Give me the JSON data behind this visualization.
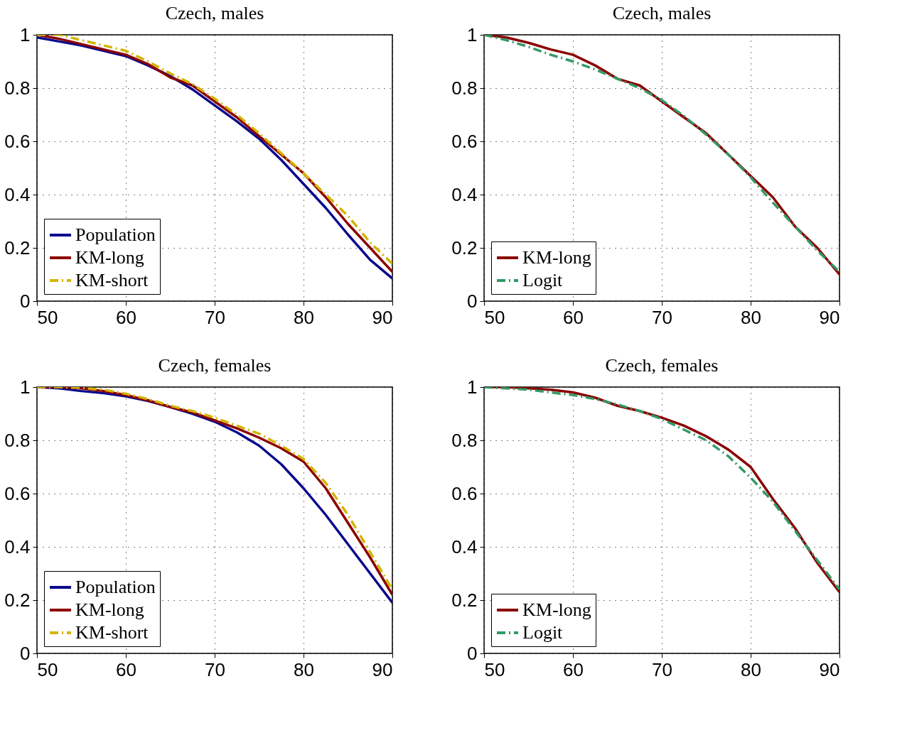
{
  "chart_data": [
    {
      "type": "line",
      "title": "Czech, males",
      "x": [
        50,
        52.5,
        55,
        57.5,
        60,
        62.5,
        65,
        67.5,
        70,
        72.5,
        75,
        77.5,
        80,
        82.5,
        85,
        87.5,
        90
      ],
      "xlim": [
        50,
        90
      ],
      "xticks": [
        50,
        60,
        70,
        80,
        90
      ],
      "ylim": [
        0,
        1
      ],
      "yticks": [
        0,
        0.2,
        0.4,
        0.6,
        0.8,
        1
      ],
      "grid": true,
      "legend": "bottom left",
      "series": [
        {
          "name": "Population",
          "color": "#0a0a8c",
          "line_style": "solid",
          "values": [
            0.99,
            0.975,
            0.96,
            0.94,
            0.92,
            0.885,
            0.845,
            0.795,
            0.735,
            0.675,
            0.61,
            0.53,
            0.44,
            0.35,
            0.25,
            0.155,
            0.085
          ]
        },
        {
          "name": "KM-long",
          "color": "#8b0000",
          "line_style": "solid",
          "values": [
            1.0,
            0.985,
            0.965,
            0.945,
            0.925,
            0.89,
            0.84,
            0.81,
            0.75,
            0.69,
            0.62,
            0.55,
            0.48,
            0.39,
            0.29,
            0.2,
            0.11
          ]
        },
        {
          "name": "KM-short",
          "color": "#d4b400",
          "line_style": "dashed",
          "values": [
            1.0,
            1.0,
            0.98,
            0.96,
            0.94,
            0.9,
            0.855,
            0.815,
            0.76,
            0.7,
            0.63,
            0.555,
            0.48,
            0.4,
            0.32,
            0.22,
            0.14
          ]
        }
      ]
    },
    {
      "type": "line",
      "title": "Czech, males",
      "x": [
        50,
        52.5,
        55,
        57.5,
        60,
        62.5,
        65,
        67.5,
        70,
        72.5,
        75,
        77.5,
        80,
        82.5,
        85,
        87.5,
        90
      ],
      "xlim": [
        50,
        90
      ],
      "xticks": [
        50,
        60,
        70,
        80,
        90
      ],
      "ylim": [
        0,
        1
      ],
      "yticks": [
        0,
        0.2,
        0.4,
        0.6,
        0.8,
        1
      ],
      "grid": true,
      "legend": "bottom left",
      "series": [
        {
          "name": "KM-long",
          "color": "#8b0000",
          "line_style": "solid",
          "values": [
            1.0,
            0.99,
            0.97,
            0.945,
            0.925,
            0.885,
            0.835,
            0.81,
            0.75,
            0.69,
            0.63,
            0.55,
            0.47,
            0.39,
            0.28,
            0.2,
            0.1
          ]
        },
        {
          "name": "Logit",
          "color": "#339966",
          "line_style": "dashed",
          "values": [
            1.0,
            0.98,
            0.955,
            0.925,
            0.9,
            0.87,
            0.835,
            0.8,
            0.755,
            0.695,
            0.625,
            0.55,
            0.465,
            0.37,
            0.28,
            0.19,
            0.11
          ]
        }
      ]
    },
    {
      "type": "line",
      "title": "Czech, females",
      "x": [
        50,
        52.5,
        55,
        57.5,
        60,
        62.5,
        65,
        67.5,
        70,
        72.5,
        75,
        77.5,
        80,
        82.5,
        85,
        87.5,
        90
      ],
      "xlim": [
        50,
        90
      ],
      "xticks": [
        50,
        60,
        70,
        80,
        90
      ],
      "ylim": [
        0,
        1
      ],
      "yticks": [
        0,
        0.2,
        0.4,
        0.6,
        0.8,
        1
      ],
      "grid": true,
      "legend": "bottom left",
      "series": [
        {
          "name": "Population",
          "color": "#0a0a8c",
          "line_style": "solid",
          "values": [
            1.0,
            0.995,
            0.985,
            0.977,
            0.965,
            0.948,
            0.925,
            0.9,
            0.87,
            0.83,
            0.78,
            0.71,
            0.62,
            0.52,
            0.41,
            0.3,
            0.19
          ]
        },
        {
          "name": "KM-long",
          "color": "#8b0000",
          "line_style": "solid",
          "values": [
            1.0,
            1.0,
            0.995,
            0.985,
            0.97,
            0.95,
            0.925,
            0.905,
            0.875,
            0.845,
            0.81,
            0.77,
            0.72,
            0.62,
            0.49,
            0.36,
            0.22
          ]
        },
        {
          "name": "KM-short",
          "color": "#d4b400",
          "line_style": "dashed",
          "values": [
            1.0,
            1.0,
            0.997,
            0.99,
            0.975,
            0.955,
            0.93,
            0.91,
            0.885,
            0.855,
            0.825,
            0.78,
            0.73,
            0.64,
            0.52,
            0.38,
            0.24
          ]
        }
      ]
    },
    {
      "type": "line",
      "title": "Czech, females",
      "x": [
        50,
        52.5,
        55,
        57.5,
        60,
        62.5,
        65,
        67.5,
        70,
        72.5,
        75,
        77.5,
        80,
        82.5,
        85,
        87.5,
        90
      ],
      "xlim": [
        50,
        90
      ],
      "xticks": [
        50,
        60,
        70,
        80,
        90
      ],
      "ylim": [
        0,
        1
      ],
      "yticks": [
        0,
        0.2,
        0.4,
        0.6,
        0.8,
        1
      ],
      "grid": true,
      "legend": "bottom left",
      "series": [
        {
          "name": "KM-long",
          "color": "#8b0000",
          "line_style": "solid",
          "values": [
            1.0,
            1.0,
            0.995,
            0.99,
            0.98,
            0.96,
            0.93,
            0.91,
            0.885,
            0.855,
            0.815,
            0.765,
            0.7,
            0.58,
            0.47,
            0.34,
            0.23
          ]
        },
        {
          "name": "Logit",
          "color": "#339966",
          "line_style": "dashed",
          "values": [
            1.0,
            0.995,
            0.99,
            0.98,
            0.97,
            0.955,
            0.935,
            0.91,
            0.88,
            0.84,
            0.8,
            0.74,
            0.66,
            0.57,
            0.46,
            0.35,
            0.24
          ]
        }
      ]
    }
  ]
}
